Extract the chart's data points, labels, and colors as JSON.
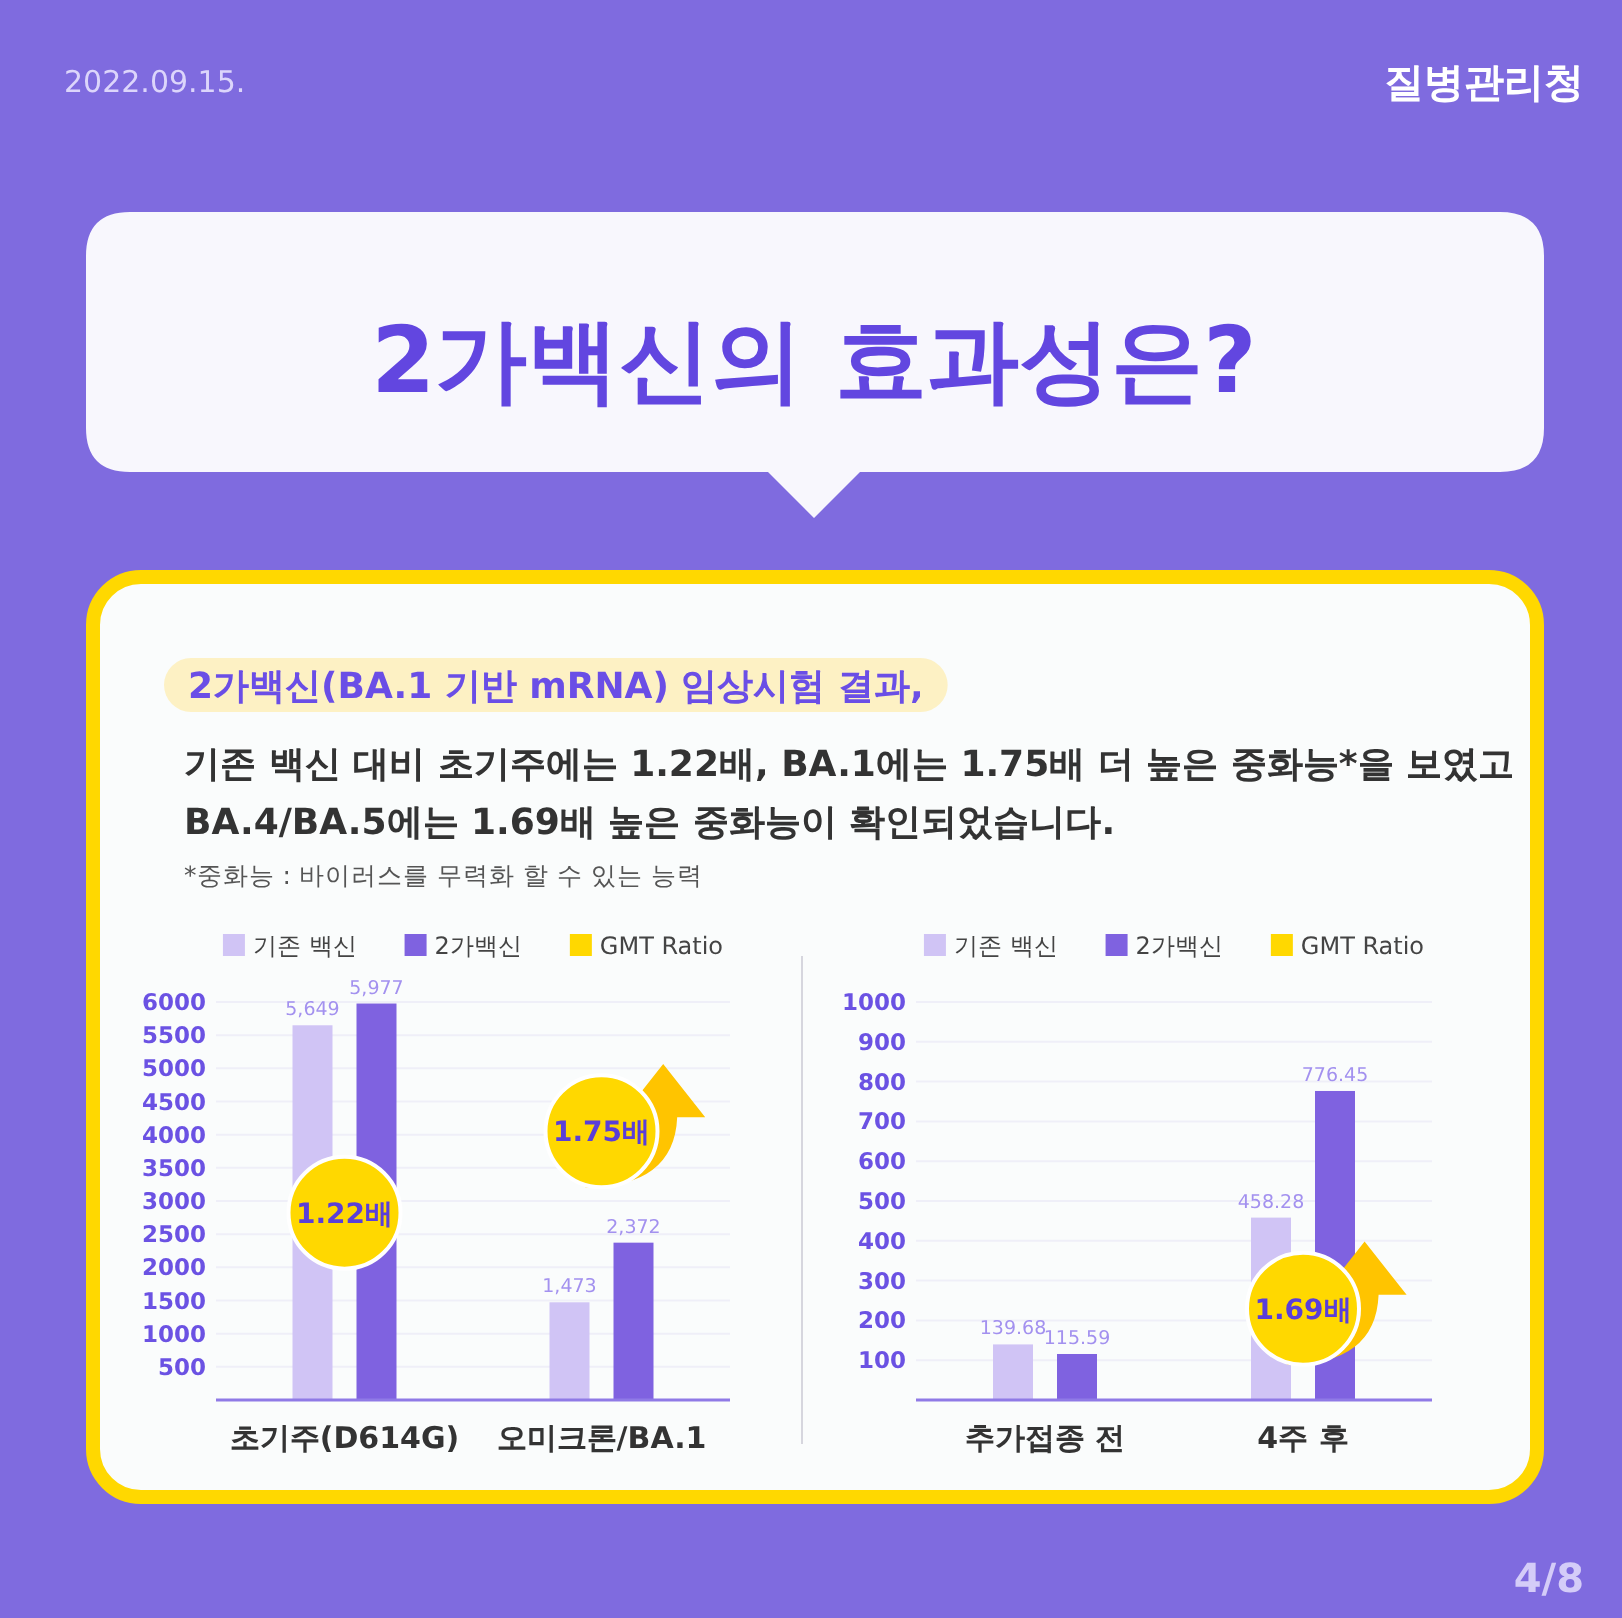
{
  "chart_data": [
    {
      "type": "bar",
      "title": "2가백신의 효과성은?",
      "subtitle": "2가백신(BA.1 기반 mRNA) 임상시험 결과,",
      "annotations": [
        "2022.09.15.",
        "질병관리청",
        "기존 백신 대비 초기주에는 1.22배, BA.1에는 1.75배 더 높은 중화능*을 보였고 BA.4/BA.5에는 1.69배 높은 중화능이 확인되었습니다.",
        "*중화능 : 바이러스를 무력화 할 수 있는 능력",
        "4/8",
        "1.22배",
        "1.75배"
      ],
      "categories": [
        "초기주(D614G)",
        "오미크론/BA.1"
      ],
      "series": [
        {
          "name": "기존 백신",
          "color": "#d0c4f5",
          "values": [
            5649,
            1473
          ],
          "value_labels": [
            "5,649",
            "1,473"
          ]
        },
        {
          "name": "2가백신",
          "color": "#7f62e0",
          "values": [
            5977,
            2372
          ],
          "value_labels": [
            "5,977",
            "2,372"
          ]
        },
        {
          "name": "GMT Ratio",
          "color": "#ffd800",
          "type": "scatter",
          "values": [
            null,
            null
          ]
        }
      ],
      "ylim": [
        0,
        6000
      ],
      "yticks": [
        500,
        1000,
        1500,
        2000,
        2500,
        3000,
        3500,
        4000,
        4500,
        5000,
        5500,
        6000
      ],
      "grid": "y",
      "legend": "top"
    },
    {
      "type": "bar",
      "annotations": [
        "1.69배"
      ],
      "categories": [
        "추가접종 전",
        "4주 후"
      ],
      "series": [
        {
          "name": "기존 백신",
          "color": "#d0c4f5",
          "values": [
            139.68,
            458.28
          ]
        },
        {
          "name": "2가백신",
          "color": "#7f62e0",
          "values": [
            115.59,
            776.45
          ]
        },
        {
          "name": "GMT Ratio",
          "color": "#ffd800",
          "type": "scatter",
          "values": [
            null,
            null
          ]
        }
      ],
      "ylim": [
        0,
        1000
      ],
      "yticks": [
        100,
        200,
        300,
        400,
        500,
        600,
        700,
        800,
        900,
        1000
      ],
      "grid": "y",
      "legend": "top",
      "data_labels": true
    }
  ]
}
